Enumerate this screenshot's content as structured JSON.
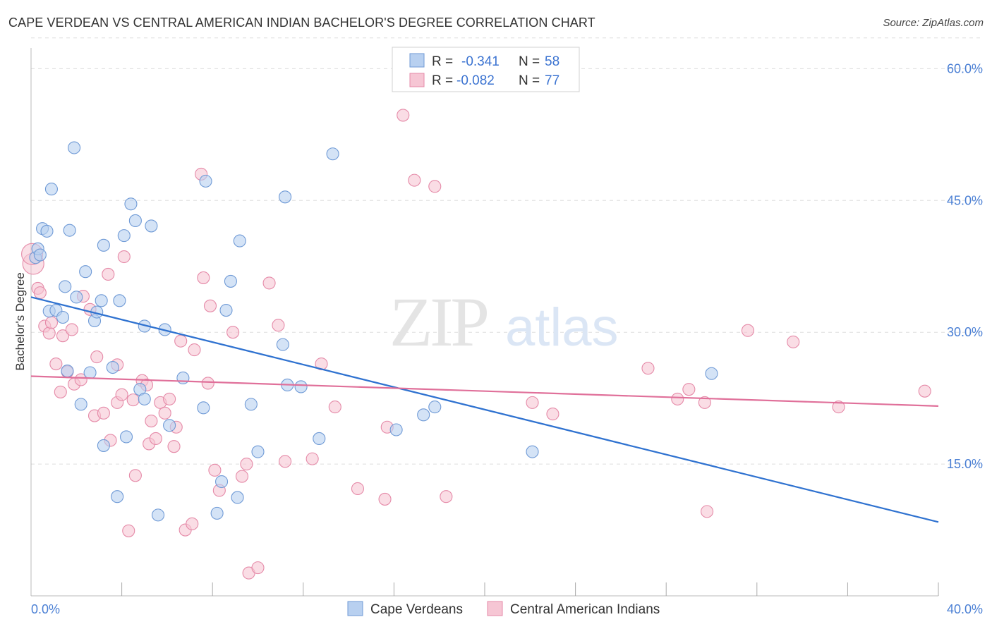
{
  "title": "CAPE VERDEAN VS CENTRAL AMERICAN INDIAN BACHELOR'S DEGREE CORRELATION CHART",
  "source": "Source: ZipAtlas.com",
  "watermark": {
    "zip": "ZIP",
    "atlas": "atlas"
  },
  "colors": {
    "blue_fill": "#b8d0f0",
    "blue_stroke": "#6f9ad6",
    "blue_line": "#2f72d0",
    "pink_fill": "#f6c6d4",
    "pink_stroke": "#e58aa8",
    "pink_line": "#e0709a",
    "axis_text": "#4a7fd4",
    "grid": "#dddddd"
  },
  "legend": {
    "rows": [
      {
        "r_label": "R = ",
        "r_value": "-0.341",
        "n_label": "N = ",
        "n_value": "58"
      },
      {
        "r_label": "R = ",
        "r_value": "-0.082",
        "n_label": "N = ",
        "n_value": "77"
      }
    ]
  },
  "chart_data": {
    "type": "scatter",
    "xlabel": "",
    "ylabel": "Bachelor's Degree",
    "xlim": [
      0,
      40
    ],
    "ylim": [
      0,
      63
    ],
    "x_tick_labels": [
      "0.0%",
      "40.0%"
    ],
    "y_ticks": [
      15,
      30,
      45,
      60
    ],
    "y_tick_labels": [
      "15.0%",
      "30.0%",
      "45.0%",
      "60.0%"
    ],
    "series": [
      {
        "name": "Cape Verdeans",
        "trend": {
          "x": [
            0,
            40
          ],
          "y": [
            34.0,
            8.4
          ]
        },
        "points": [
          [
            0.2,
            38.5
          ],
          [
            0.3,
            39.5
          ],
          [
            0.4,
            38.8
          ],
          [
            0.5,
            41.8
          ],
          [
            0.7,
            41.5
          ],
          [
            0.9,
            46.3
          ],
          [
            0.8,
            32.4
          ],
          [
            1.1,
            32.5
          ],
          [
            1.4,
            31.7
          ],
          [
            1.5,
            35.2
          ],
          [
            1.6,
            25.6
          ],
          [
            1.7,
            41.6
          ],
          [
            1.9,
            51.0
          ],
          [
            2.0,
            34.0
          ],
          [
            2.2,
            21.8
          ],
          [
            2.4,
            36.9
          ],
          [
            2.6,
            25.4
          ],
          [
            2.8,
            31.3
          ],
          [
            2.9,
            32.3
          ],
          [
            3.1,
            33.6
          ],
          [
            3.2,
            17.1
          ],
          [
            3.2,
            39.9
          ],
          [
            3.6,
            26.0
          ],
          [
            3.8,
            11.3
          ],
          [
            3.9,
            33.6
          ],
          [
            4.1,
            41.0
          ],
          [
            4.2,
            18.1
          ],
          [
            4.4,
            44.6
          ],
          [
            4.6,
            42.7
          ],
          [
            4.8,
            23.5
          ],
          [
            5.0,
            22.4
          ],
          [
            5.0,
            30.7
          ],
          [
            5.3,
            42.1
          ],
          [
            5.6,
            9.2
          ],
          [
            5.9,
            30.3
          ],
          [
            6.1,
            19.4
          ],
          [
            6.7,
            24.8
          ],
          [
            7.6,
            21.4
          ],
          [
            7.7,
            47.2
          ],
          [
            8.2,
            9.4
          ],
          [
            8.4,
            13.0
          ],
          [
            8.6,
            32.5
          ],
          [
            8.8,
            35.8
          ],
          [
            9.1,
            11.2
          ],
          [
            9.2,
            40.4
          ],
          [
            9.7,
            21.8
          ],
          [
            10.0,
            16.4
          ],
          [
            11.1,
            28.6
          ],
          [
            11.2,
            45.4
          ],
          [
            11.3,
            24.0
          ],
          [
            11.9,
            23.8
          ],
          [
            12.7,
            17.9
          ],
          [
            13.3,
            50.3
          ],
          [
            16.1,
            18.9
          ],
          [
            17.3,
            20.6
          ],
          [
            17.8,
            21.5
          ],
          [
            22.1,
            16.4
          ],
          [
            30.0,
            25.3
          ]
        ]
      },
      {
        "name": "Central American Indians",
        "trend": {
          "x": [
            0,
            40
          ],
          "y": [
            25.0,
            21.6
          ]
        },
        "points": [
          [
            0.1,
            37.8
          ],
          [
            0.3,
            35.0
          ],
          [
            0.4,
            34.5
          ],
          [
            0.6,
            30.7
          ],
          [
            0.8,
            29.9
          ],
          [
            0.9,
            31.1
          ],
          [
            1.1,
            26.4
          ],
          [
            1.3,
            23.2
          ],
          [
            1.4,
            29.6
          ],
          [
            1.6,
            25.5
          ],
          [
            1.8,
            30.3
          ],
          [
            1.9,
            24.1
          ],
          [
            2.2,
            24.6
          ],
          [
            2.3,
            34.1
          ],
          [
            2.6,
            32.6
          ],
          [
            2.8,
            20.5
          ],
          [
            2.9,
            27.2
          ],
          [
            3.2,
            20.8
          ],
          [
            3.4,
            36.6
          ],
          [
            3.5,
            17.7
          ],
          [
            3.8,
            26.3
          ],
          [
            3.8,
            22.0
          ],
          [
            4.0,
            22.9
          ],
          [
            4.1,
            38.6
          ],
          [
            4.3,
            7.4
          ],
          [
            4.5,
            22.3
          ],
          [
            4.6,
            13.7
          ],
          [
            4.9,
            24.5
          ],
          [
            5.1,
            24.0
          ],
          [
            5.2,
            17.3
          ],
          [
            5.3,
            19.9
          ],
          [
            5.5,
            17.9
          ],
          [
            5.7,
            22.0
          ],
          [
            5.9,
            20.8
          ],
          [
            6.1,
            22.4
          ],
          [
            6.3,
            17.0
          ],
          [
            6.4,
            19.2
          ],
          [
            6.6,
            29.0
          ],
          [
            6.8,
            7.5
          ],
          [
            7.1,
            8.2
          ],
          [
            7.2,
            28.0
          ],
          [
            7.5,
            48.0
          ],
          [
            7.6,
            36.2
          ],
          [
            7.8,
            24.2
          ],
          [
            7.9,
            33.0
          ],
          [
            8.1,
            14.3
          ],
          [
            8.3,
            12.0
          ],
          [
            8.9,
            30.0
          ],
          [
            9.3,
            13.6
          ],
          [
            9.5,
            15.0
          ],
          [
            9.6,
            2.6
          ],
          [
            10.0,
            3.2
          ],
          [
            10.5,
            35.6
          ],
          [
            10.9,
            30.8
          ],
          [
            11.2,
            15.3
          ],
          [
            12.4,
            15.6
          ],
          [
            12.8,
            26.4
          ],
          [
            13.4,
            21.5
          ],
          [
            14.4,
            12.2
          ],
          [
            15.6,
            11.0
          ],
          [
            15.7,
            19.2
          ],
          [
            16.4,
            54.7
          ],
          [
            16.9,
            47.3
          ],
          [
            17.8,
            46.6
          ],
          [
            18.3,
            11.3
          ],
          [
            22.1,
            22.0
          ],
          [
            23.0,
            20.7
          ],
          [
            27.2,
            25.9
          ],
          [
            28.5,
            22.4
          ],
          [
            29.0,
            23.5
          ],
          [
            29.7,
            22.0
          ],
          [
            29.8,
            9.6
          ],
          [
            31.6,
            30.2
          ],
          [
            33.6,
            28.9
          ],
          [
            35.6,
            21.5
          ],
          [
            39.4,
            23.3
          ],
          [
            0.05,
            38.9
          ]
        ]
      }
    ]
  }
}
